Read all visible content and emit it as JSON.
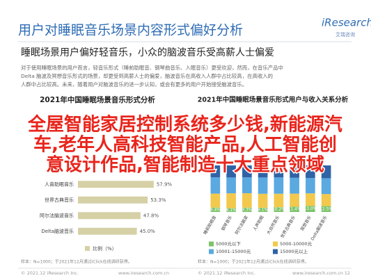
{
  "header": {
    "title": "用户对睡眠音乐场景内容形式偏好分析",
    "logo": "iResearch",
    "logo_sub": "艾瑞咨询"
  },
  "subtitle": "睡眠场景用户偏好轻音乐，小众的脑波音乐受高薪人士偏爱",
  "intro": [
    "对于使用睡眠场景的用户而言，轻音乐形式（睡前助眠音、钢琴曲音乐、入眠音乐）更受欢迎，然而，在音乐产品中",
    "Delta 脑波及冥想音乐形式的场景，却更受到高薪人士的偏爱，脑波音乐在高收入人群中占比较高，在高收入的",
    "人群中占比较高。未来，随着用户对脑波音乐的进一步认知，或会有更多的用户开始接受脑波音乐。"
  ],
  "overlay": [
    "全屋智能家居控制系统多少钱,新能源汽",
    "车,老年人高科技智能产品,人工智能创",
    "意设计作品,智能制造十大重点领域"
  ],
  "chart_data": [
    {
      "type": "barh",
      "title": "2021年中国睡眠场景音乐形式分析",
      "categories": [
        "人音助眠音乐",
        "世界古典音乐",
        "阿尔法脑波音乐",
        "Delta脑波音乐"
      ],
      "series": [
        {
          "name": "比例（%）",
          "color": "#d6d0a6",
          "values": [
            57.9,
            53.3,
            47.8,
            45.0
          ],
          "value_labels": [
            "57.9%",
            "53.3%",
            "47.8%",
            "45.0%"
          ]
        }
      ],
      "xlim": [
        0,
        100
      ],
      "source": "样本：N=1000；于2021年12月通过iClick在线调研获得。"
    },
    {
      "type": "stacked_bar",
      "title": "2021年中国睡眠场景音乐形式用户与收入关系分析",
      "categories": [
        "睡前助眠音",
        "钢琴音乐",
        "阿尔法脑波",
        "人声助眠",
        "大自然音乐",
        "世界古典音乐",
        "冥想音乐",
        "Delta脑波音乐"
      ],
      "series": [
        {
          "name": "5000元以下",
          "color": "#7cc36b",
          "values": [
            9.4,
            8.1,
            9.3,
            9.1,
            10.2,
            11.4,
            13.0,
            12.5
          ],
          "value_labels": [
            "9.4%",
            "8.1%",
            "9.3%",
            "9.1%",
            "10.2%",
            "11.4%",
            "13.0%",
            "12.5%"
          ]
        },
        {
          "name": "5000-10000元",
          "color": "#f2c94c",
          "values": [
            30,
            32,
            31,
            30,
            29,
            28,
            27,
            26
          ]
        },
        {
          "name": "10001-15000元",
          "color": "#5aa9e0",
          "values": [
            35,
            34,
            34,
            35,
            35,
            34,
            33,
            34
          ]
        },
        {
          "name": "15000元以上",
          "color": "#2f63a6",
          "values": [
            25.6,
            25.9,
            25.7,
            25.9,
            25.8,
            26.6,
            27.0,
            27.5
          ]
        }
      ],
      "ylim": [
        0,
        100
      ],
      "source": "样本：N=1000；于2021年12月通过iClick在线调研获得。"
    }
  ],
  "footer": {
    "left_copyright": "© 2021.12 iResearch Inc.",
    "left_url": "www.iresearch.com.cn",
    "right_copyright": "© 2021.12 iResearch Inc.",
    "right_url": "www.iresearch.com.cn",
    "page": "12"
  }
}
